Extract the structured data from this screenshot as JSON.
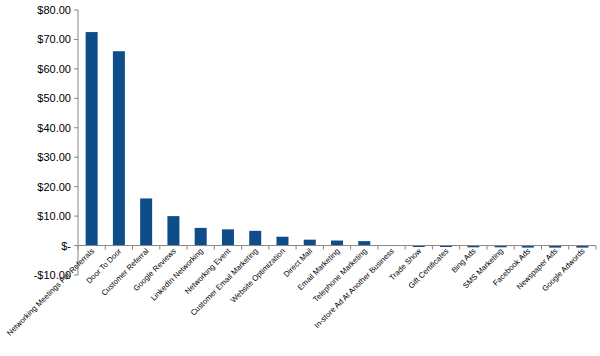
{
  "chart_data": {
    "type": "bar",
    "categories": [
      "Networking Meetings For Referrals",
      "Door To Door",
      "Customer Referral",
      "Google Reviews",
      "LinkedIn Networking",
      "Networking Event",
      "Customer Email Marketing",
      "Website Optimization",
      "Direct Mail",
      "Email Marketing",
      "Telephone Marketing",
      "In-store Ad At Another Business",
      "Trade Show",
      "Gift Certificates",
      "Bing Ads",
      "SMS Marketing",
      "Facebook Ads",
      "Newspaper Ads",
      "Google Adwords"
    ],
    "values": [
      72.5,
      66,
      16,
      10,
      6,
      5.5,
      5,
      3,
      2,
      1.7,
      1.5,
      0,
      -0.5,
      -0.5,
      -0.6,
      -0.6,
      -0.7,
      -0.7,
      -0.7
    ],
    "color": "#0f4d8a",
    "ylim": [
      -10,
      80
    ],
    "yticks": [
      {
        "value": -10,
        "label": "-$10.00"
      },
      {
        "value": 0,
        "label": "$-"
      },
      {
        "value": 10,
        "label": "$10.00"
      },
      {
        "value": 20,
        "label": "$20.00"
      },
      {
        "value": 30,
        "label": "$30.00"
      },
      {
        "value": 40,
        "label": "$40.00"
      },
      {
        "value": 50,
        "label": "$50.00"
      },
      {
        "value": 60,
        "label": "$60.00"
      },
      {
        "value": 70,
        "label": "$70.00"
      },
      {
        "value": 80,
        "label": "$80.00"
      }
    ],
    "grid": false
  }
}
